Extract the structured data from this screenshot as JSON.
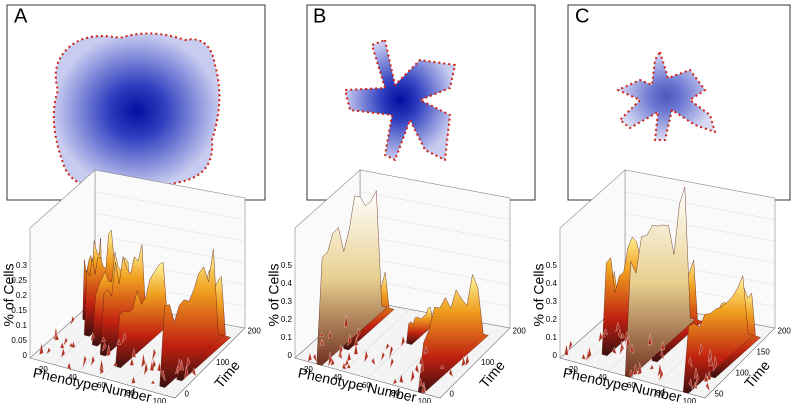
{
  "panels": [
    {
      "label": "A",
      "plot": {
        "zlabel": "% of Cells",
        "xlabel": "Phenotype Number",
        "ylabel": "Time",
        "zticks": [
          "0",
          "0.05",
          "0.1",
          "0.15",
          "0.2",
          "0.25",
          "0.3"
        ],
        "xticks": [
          "20",
          "40",
          "60",
          "80",
          "100"
        ],
        "yticks": [
          "0",
          "100",
          "200"
        ]
      }
    },
    {
      "label": "B",
      "plot": {
        "zlabel": "% of Cells",
        "xlabel": "Phenotype Number",
        "ylabel": "Time",
        "zticks": [
          "0",
          "0.1",
          "0.2",
          "0.3",
          "0.4",
          "0.5"
        ],
        "xticks": [
          "20",
          "40",
          "60",
          "80",
          "100"
        ],
        "yticks": [
          "0",
          "100",
          "200"
        ]
      }
    },
    {
      "label": "C",
      "plot": {
        "zlabel": "% of Cells",
        "xlabel": "Phenotype Number",
        "ylabel": "Time",
        "zticks": [
          "0",
          "0.1",
          "0.2",
          "0.3",
          "0.4",
          "0.5"
        ],
        "xticks": [
          "20",
          "40",
          "60",
          "80",
          "100"
        ],
        "yticks": [
          "50",
          "100",
          "150",
          "200"
        ]
      }
    }
  ]
}
